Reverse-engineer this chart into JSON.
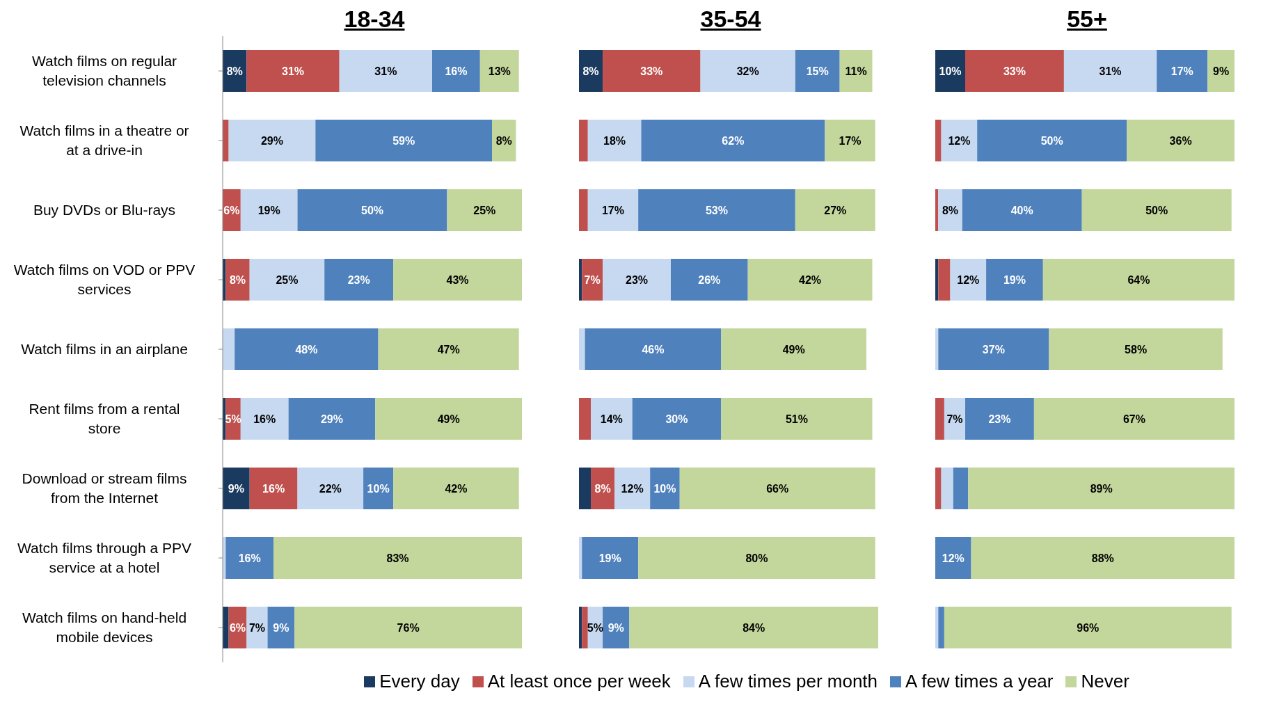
{
  "chart_data": [
    {
      "type": "bar",
      "orientation": "horizontal",
      "stacked": true,
      "title": "18-34",
      "legend": "bottom",
      "tick_labels": "y",
      "categories": [
        "Watch films on regular television channels",
        "Watch films in a theatre or at a drive-in",
        "Buy DVDs or Blu-rays",
        "Watch films on VOD or PPV services",
        "Watch films in an airplane",
        "Rent films from a rental store",
        "Download or stream films from the Internet",
        "Watch films through a PPV service at a hotel",
        "Watch films on hand-held mobile devices"
      ],
      "series": [
        {
          "name": "Every day",
          "color": "#1b3a5f",
          "values": [
            8,
            0,
            0,
            1,
            0,
            1,
            9,
            0,
            2
          ],
          "value_labels": [
            "8%",
            null,
            null,
            null,
            null,
            null,
            "9%",
            null,
            null
          ]
        },
        {
          "name": "At least once per week",
          "color": "#c0504d",
          "values": [
            31,
            2,
            6,
            8,
            0,
            5,
            16,
            0,
            6
          ],
          "value_labels": [
            "31%",
            null,
            "6%",
            "8%",
            null,
            "5%",
            "16%",
            null,
            "6%"
          ]
        },
        {
          "name": "A few times per month",
          "color": "#c6d9f0",
          "values": [
            31,
            29,
            19,
            25,
            4,
            16,
            22,
            1,
            7
          ],
          "value_labels": [
            "31%",
            "29%",
            "19%",
            "25%",
            null,
            "16%",
            "22%",
            null,
            "7%"
          ]
        },
        {
          "name": "A few times a year",
          "color": "#4f81bd",
          "values": [
            16,
            59,
            50,
            23,
            48,
            29,
            10,
            16,
            9
          ],
          "value_labels": [
            "16%",
            "59%",
            "50%",
            "23%",
            "48%",
            "29%",
            "10%",
            "16%",
            "9%"
          ]
        },
        {
          "name": "Never",
          "color": "#c3d69b",
          "values": [
            13,
            8,
            25,
            43,
            47,
            49,
            42,
            83,
            76
          ],
          "value_labels": [
            "13%",
            "8%",
            "25%",
            "43%",
            "47%",
            "49%",
            "42%",
            "83%",
            "76%"
          ]
        }
      ]
    },
    {
      "type": "bar",
      "orientation": "horizontal",
      "stacked": true,
      "title": "35-54",
      "tick_labels": false,
      "categories": [
        null,
        null,
        null,
        null,
        null,
        null,
        null,
        null,
        null
      ],
      "series": [
        {
          "color": "#1b3a5f",
          "values": [
            8,
            0,
            0,
            1,
            0,
            0,
            4,
            0,
            1
          ],
          "value_labels": [
            "8%",
            null,
            null,
            null,
            null,
            null,
            null,
            null,
            null
          ]
        },
        {
          "color": "#c0504d",
          "values": [
            33,
            3,
            3,
            7,
            0,
            4,
            8,
            0,
            2
          ],
          "value_labels": [
            "33%",
            null,
            null,
            "7%",
            null,
            null,
            "8%",
            null,
            null
          ]
        },
        {
          "color": "#c6d9f0",
          "values": [
            32,
            18,
            17,
            23,
            2,
            14,
            12,
            1,
            5
          ],
          "value_labels": [
            "32%",
            "18%",
            "17%",
            "23%",
            null,
            "14%",
            "12%",
            null,
            "5%"
          ]
        },
        {
          "color": "#4f81bd",
          "values": [
            15,
            62,
            53,
            26,
            46,
            30,
            10,
            19,
            9
          ],
          "value_labels": [
            "15%",
            "62%",
            "53%",
            "26%",
            "46%",
            "30%",
            "10%",
            "19%",
            "9%"
          ]
        },
        {
          "color": "#c3d69b",
          "values": [
            11,
            17,
            27,
            42,
            49,
            51,
            66,
            80,
            84
          ],
          "value_labels": [
            "11%",
            "17%",
            "27%",
            "42%",
            "49%",
            "51%",
            "66%",
            "80%",
            "84%"
          ]
        }
      ]
    },
    {
      "type": "bar",
      "orientation": "horizontal",
      "stacked": true,
      "title": "55+",
      "tick_labels": false,
      "categories": [
        null,
        null,
        null,
        null,
        null,
        null,
        null,
        null,
        null
      ],
      "series": [
        {
          "color": "#1b3a5f",
          "values": [
            10,
            0,
            0,
            1,
            0,
            0,
            0,
            0,
            0
          ],
          "value_labels": [
            "10%",
            null,
            null,
            null,
            null,
            null,
            null,
            null,
            null
          ]
        },
        {
          "color": "#c0504d",
          "values": [
            33,
            2,
            1,
            4,
            0,
            3,
            2,
            0,
            0
          ],
          "value_labels": [
            "33%",
            null,
            null,
            null,
            null,
            null,
            null,
            null,
            null
          ]
        },
        {
          "color": "#c6d9f0",
          "values": [
            31,
            12,
            8,
            12,
            1,
            7,
            4,
            0,
            1
          ],
          "value_labels": [
            "31%",
            "12%",
            "8%",
            "12%",
            null,
            "7%",
            null,
            null,
            null
          ]
        },
        {
          "color": "#4f81bd",
          "values": [
            17,
            50,
            40,
            19,
            37,
            23,
            5,
            12,
            2
          ],
          "value_labels": [
            "17%",
            "50%",
            "40%",
            "19%",
            "37%",
            "23%",
            null,
            "12%",
            null
          ]
        },
        {
          "color": "#c3d69b",
          "values": [
            9,
            36,
            50,
            64,
            58,
            67,
            89,
            88,
            96
          ],
          "value_labels": [
            "9%",
            "36%",
            "50%",
            "64%",
            "58%",
            "67%",
            "89%",
            "88%",
            "96%"
          ]
        }
      ]
    }
  ]
}
